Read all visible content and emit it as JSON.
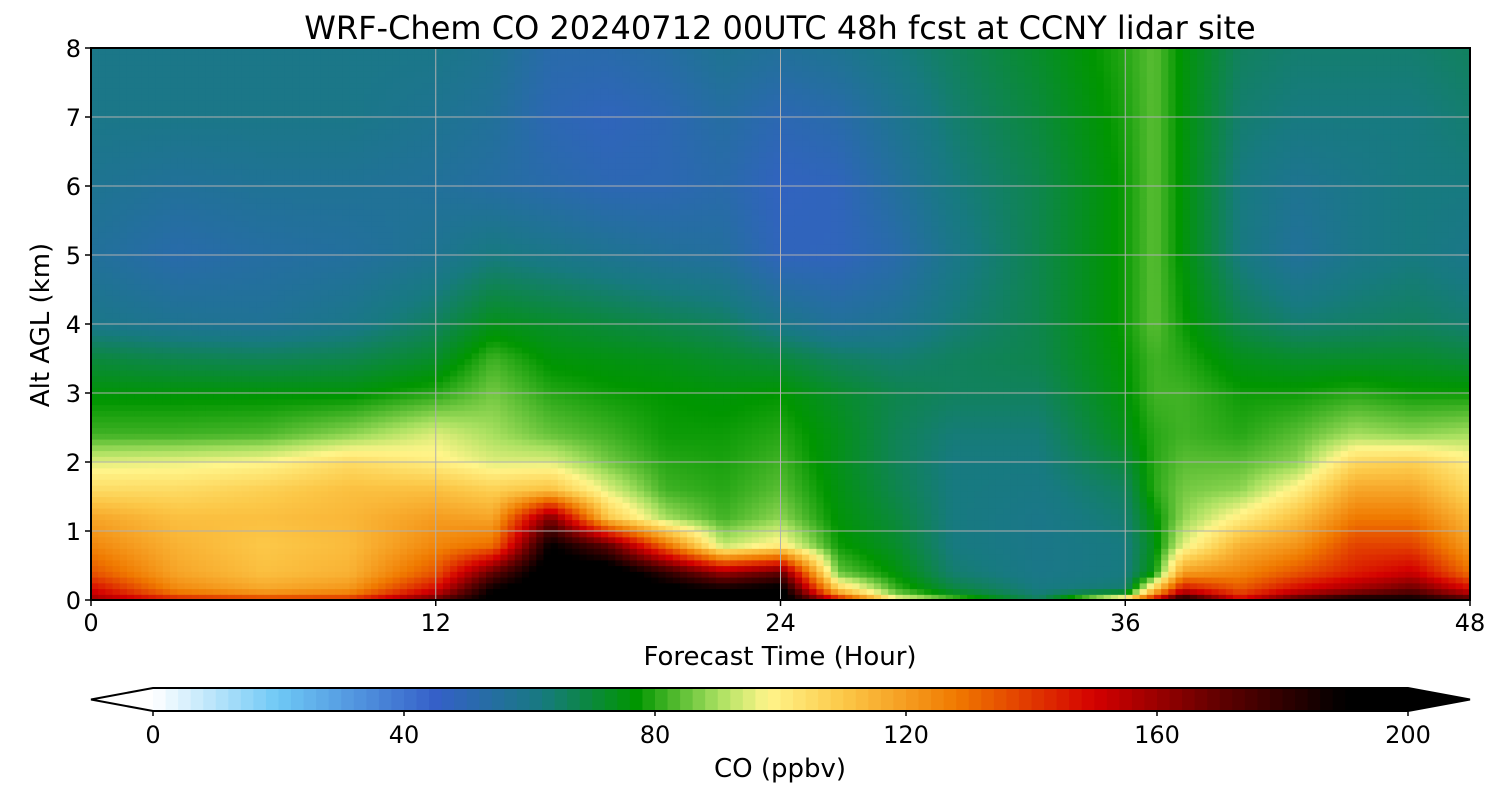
{
  "chart_data": {
    "type": "heatmap",
    "title": "WRF-Chem CO  20240712 00UTC 48h fcst at CCNY lidar site",
    "xlabel": "Forecast Time (Hour)",
    "ylabel": "Alt AGL (km)",
    "xlim": [
      0,
      48
    ],
    "ylim": [
      0,
      8
    ],
    "x_ticks": [
      "0",
      "12",
      "24",
      "36",
      "48"
    ],
    "y_ticks": [
      "0",
      "1",
      "2",
      "3",
      "4",
      "5",
      "6",
      "7",
      "8"
    ],
    "grid": true,
    "colorbar": {
      "label": "CO  (ppbv)",
      "range": [
        0,
        200
      ],
      "ticks": [
        "0",
        "40",
        "80",
        "120",
        "160",
        "200"
      ],
      "extend": "both",
      "stops": [
        {
          "v": 0,
          "c": "#ffffff"
        },
        {
          "v": 20,
          "c": "#6ec8f5"
        },
        {
          "v": 45,
          "c": "#3560c8"
        },
        {
          "v": 62,
          "c": "#177a80"
        },
        {
          "v": 77,
          "c": "#009600"
        },
        {
          "v": 90,
          "c": "#a8e060"
        },
        {
          "v": 98,
          "c": "#fff58a"
        },
        {
          "v": 110,
          "c": "#fcc848"
        },
        {
          "v": 128,
          "c": "#f07a00"
        },
        {
          "v": 150,
          "c": "#d40000"
        },
        {
          "v": 170,
          "c": "#600000"
        },
        {
          "v": 190,
          "c": "#000000"
        },
        {
          "v": 200,
          "c": "#000000"
        }
      ]
    },
    "grid_hours": [
      0,
      3,
      6,
      9,
      12,
      14,
      16,
      18,
      20,
      22,
      24,
      26,
      28,
      30,
      33,
      36,
      37,
      38,
      40,
      42,
      44,
      46,
      48
    ],
    "grid_altitudes_km": [
      0,
      0.15,
      0.4,
      0.8,
      1.2,
      1.6,
      2.0,
      2.4,
      3.0,
      3.5,
      4.0,
      5.0,
      6.0,
      7.0,
      8.0
    ],
    "co_ppbv": [
      [
        160,
        150,
        135,
        125,
        118,
        105,
        95,
        82,
        76,
        70,
        60,
        56,
        58,
        60,
        60
      ],
      [
        145,
        125,
        118,
        115,
        112,
        105,
        96,
        82,
        76,
        68,
        58,
        52,
        56,
        60,
        60
      ],
      [
        140,
        118,
        112,
        110,
        112,
        108,
        98,
        83,
        76,
        67,
        57,
        54,
        57,
        60,
        60
      ],
      [
        142,
        122,
        115,
        113,
        114,
        112,
        105,
        88,
        76,
        68,
        60,
        55,
        57,
        60,
        60
      ],
      [
        170,
        150,
        135,
        125,
        120,
        112,
        100,
        95,
        80,
        72,
        66,
        58,
        56,
        58,
        60
      ],
      [
        195,
        190,
        170,
        130,
        118,
        108,
        95,
        90,
        86,
        82,
        74,
        62,
        54,
        56,
        58
      ],
      [
        200,
        200,
        200,
        190,
        165,
        112,
        95,
        85,
        80,
        76,
        72,
        60,
        52,
        50,
        52
      ],
      [
        200,
        200,
        200,
        170,
        110,
        95,
        86,
        82,
        78,
        75,
        70,
        58,
        50,
        48,
        52
      ],
      [
        200,
        195,
        180,
        130,
        90,
        82,
        80,
        78,
        77,
        74,
        68,
        56,
        50,
        50,
        54
      ],
      [
        200,
        190,
        160,
        92,
        82,
        80,
        79,
        78,
        76,
        72,
        66,
        55,
        52,
        54,
        58
      ],
      [
        200,
        195,
        170,
        100,
        88,
        84,
        82,
        80,
        77,
        70,
        60,
        48,
        47,
        50,
        56
      ],
      [
        150,
        110,
        85,
        78,
        76,
        75,
        74,
        74,
        72,
        66,
        56,
        48,
        48,
        52,
        58
      ],
      [
        100,
        82,
        76,
        72,
        70,
        68,
        67,
        67,
        68,
        64,
        58,
        52,
        55,
        58,
        62
      ],
      [
        85,
        70,
        64,
        62,
        62,
        62,
        62,
        63,
        66,
        66,
        63,
        60,
        62,
        64,
        66
      ],
      [
        66,
        62,
        60,
        60,
        60,
        61,
        62,
        63,
        66,
        68,
        68,
        68,
        68,
        70,
        72
      ],
      [
        110,
        64,
        62,
        62,
        64,
        66,
        70,
        74,
        76,
        77,
        78,
        78,
        78,
        79,
        80
      ],
      [
        150,
        110,
        76,
        74,
        76,
        80,
        80,
        80,
        82,
        82,
        84,
        84,
        84,
        84,
        84
      ],
      [
        190,
        150,
        120,
        95,
        88,
        86,
        84,
        82,
        82,
        80,
        78,
        76,
        76,
        76,
        76
      ],
      [
        150,
        135,
        125,
        115,
        100,
        88,
        84,
        80,
        78,
        74,
        68,
        62,
        62,
        64,
        66
      ],
      [
        175,
        150,
        135,
        122,
        112,
        100,
        88,
        84,
        78,
        72,
        64,
        56,
        58,
        62,
        64
      ],
      [
        190,
        160,
        145,
        138,
        128,
        118,
        106,
        90,
        80,
        72,
        65,
        60,
        60,
        62,
        64
      ],
      [
        190,
        170,
        152,
        138,
        128,
        118,
        108,
        88,
        78,
        72,
        66,
        62,
        62,
        62,
        64
      ],
      [
        175,
        150,
        130,
        120,
        114,
        106,
        100,
        90,
        78,
        70,
        64,
        60,
        62,
        64,
        66
      ]
    ]
  }
}
